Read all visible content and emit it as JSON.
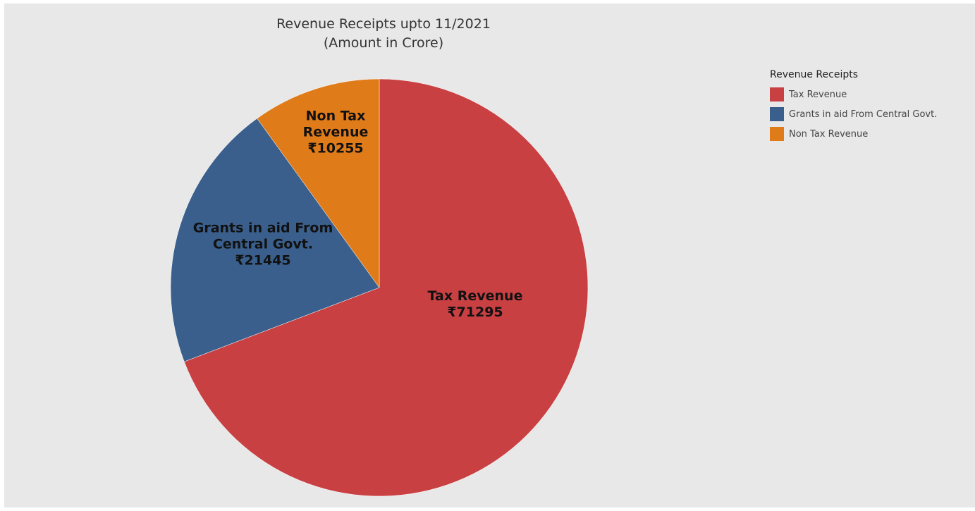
{
  "chart_data": {
    "type": "pie",
    "title": "Revenue Receipts upto 11/2021",
    "subtitle": "(Amount in Crore)",
    "legend_title": "Revenue Receipts",
    "legend_position": "top-right",
    "slices": [
      {
        "name": "Tax Revenue",
        "value": 71295,
        "value_label": "₹71295",
        "label_lines": [
          "Tax Revenue"
        ],
        "color": "#c94043"
      },
      {
        "name": "Grants in aid From Central Govt.",
        "value": 21445,
        "value_label": "₹21445",
        "label_lines": [
          "Grants in aid From",
          "Central Govt."
        ],
        "color": "#3a5f8c"
      },
      {
        "name": "Non Tax Revenue",
        "value": 10255,
        "value_label": "₹10255",
        "label_lines": [
          "Non Tax",
          "Revenue"
        ],
        "color": "#e07b1a"
      }
    ]
  }
}
